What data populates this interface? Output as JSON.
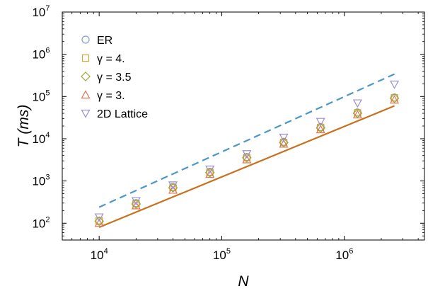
{
  "chart_data": {
    "type": "scatter",
    "title": "",
    "xlabel": "N",
    "ylabel_main": "T",
    "ylabel_unit": "(ms)",
    "xscale": "log",
    "yscale": "log",
    "xlim": [
      5000,
      4500000
    ],
    "ylim": [
      40,
      10000000
    ],
    "grid": false,
    "legend_position": "top-left",
    "x_ticks": [
      {
        "base": "10",
        "exp": "4",
        "value": 10000
      },
      {
        "base": "10",
        "exp": "5",
        "value": 100000
      },
      {
        "base": "10",
        "exp": "6",
        "value": 1000000
      }
    ],
    "y_ticks": [
      {
        "base": "10",
        "exp": "2",
        "value": 100
      },
      {
        "base": "10",
        "exp": "3",
        "value": 1000
      },
      {
        "base": "10",
        "exp": "4",
        "value": 10000
      },
      {
        "base": "10",
        "exp": "5",
        "value": 100000
      },
      {
        "base": "10",
        "exp": "6",
        "value": 1000000
      },
      {
        "base": "10",
        "exp": "7",
        "value": 10000000
      }
    ],
    "x": [
      10000,
      20000,
      40000,
      80000,
      160000,
      320000,
      640000,
      1280000,
      2560000
    ],
    "series": [
      {
        "name": "ER",
        "marker": "circle",
        "color": "#8a9fcf",
        "values": [
          110,
          300,
          720,
          1650,
          3700,
          8500,
          19000,
          42000,
          95000
        ]
      },
      {
        "name": "γ = 4.",
        "marker": "square",
        "color": "#d6a531",
        "values": [
          115,
          290,
          700,
          1600,
          3600,
          8200,
          18500,
          41000,
          93000
        ]
      },
      {
        "name": "γ = 3.5",
        "marker": "diamond",
        "color": "#9ea63a",
        "values": [
          112,
          285,
          690,
          1580,
          3550,
          8100,
          18000,
          40000,
          91000
        ]
      },
      {
        "name": "γ = 3.",
        "marker": "triangle-up",
        "color": "#e07452",
        "values": [
          100,
          260,
          610,
          1450,
          3200,
          7500,
          16500,
          37000,
          83000
        ]
      },
      {
        "name": "2D Lattice",
        "marker": "triangle-down",
        "color": "#9c8fcc",
        "values": [
          140,
          340,
          800,
          1900,
          4400,
          10800,
          25500,
          70000,
          195000
        ]
      }
    ],
    "fit_lines": [
      {
        "style": "dashed",
        "color": "#4d97c7",
        "x": [
          10000,
          2560000
        ],
        "y": [
          240,
          340000
        ]
      },
      {
        "style": "solid",
        "color": "#c8711d",
        "x": [
          10000,
          2560000
        ],
        "y": [
          80,
          60000
        ]
      }
    ]
  }
}
